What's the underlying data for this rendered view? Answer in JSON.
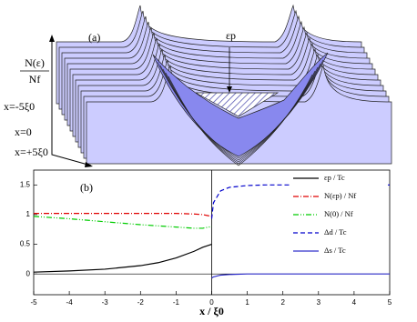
{
  "panel_a": {
    "z_label_numerator": "N(ε)",
    "z_label_denominator": "Nf",
    "panel_label": "(a)",
    "annotation": "εp",
    "position_labels": [
      "x=-5ξ0",
      "x=0",
      "x=+5ξ0"
    ]
  },
  "chart_data": {
    "type": "line",
    "panel_label": "(b)",
    "xlabel": "x / ξ0",
    "x": [
      -5,
      -4,
      -3,
      -2,
      -1.5,
      -1,
      -0.5,
      -0.25,
      0,
      0.05,
      0.25,
      0.5,
      1,
      1.5,
      2,
      3,
      4,
      5
    ],
    "xlim": [
      -5,
      5
    ],
    "xticks": [
      -5,
      -4,
      -3,
      -2,
      -1,
      0,
      1,
      2,
      3,
      4,
      5
    ],
    "ylim": [
      -0.35,
      1.75
    ],
    "yticks": [
      0,
      0.5,
      1,
      1.5
    ],
    "series": [
      {
        "name": "εp / Tc",
        "color": "#000000",
        "dash": "",
        "values": [
          0.03,
          0.05,
          0.08,
          0.14,
          0.19,
          0.27,
          0.38,
          0.45,
          0.5,
          null,
          null,
          null,
          null,
          null,
          null,
          null,
          null,
          null
        ]
      },
      {
        "name": "N(εp) / Nf",
        "color": "#e00000",
        "dash": "6 2 1 2",
        "values": [
          1.02,
          1.02,
          1.02,
          1.02,
          1.02,
          1.02,
          1.01,
          1.0,
          0.97,
          null,
          null,
          null,
          null,
          null,
          null,
          null,
          null,
          null
        ]
      },
      {
        "name": "N(0) / Nf",
        "color": "#00cc00",
        "dash": "6 2 1 2 1 2",
        "values": [
          0.97,
          0.93,
          0.88,
          0.83,
          0.81,
          0.79,
          0.77,
          0.77,
          0.8,
          null,
          null,
          null,
          null,
          null,
          null,
          null,
          null,
          null
        ]
      },
      {
        "name": "Δd / Tc",
        "color": "#0000cc",
        "dash": "5 3",
        "values": [
          null,
          null,
          null,
          null,
          null,
          null,
          null,
          null,
          0.93,
          1.2,
          1.4,
          1.46,
          1.49,
          1.5,
          1.5,
          1.5,
          1.5,
          1.5
        ]
      },
      {
        "name": "Δs / Tc",
        "color": "#3030cc",
        "dash": "",
        "values": [
          null,
          null,
          null,
          null,
          null,
          null,
          null,
          null,
          -0.07,
          -0.05,
          -0.02,
          -0.01,
          0,
          0,
          0,
          0,
          0,
          0
        ]
      }
    ]
  }
}
